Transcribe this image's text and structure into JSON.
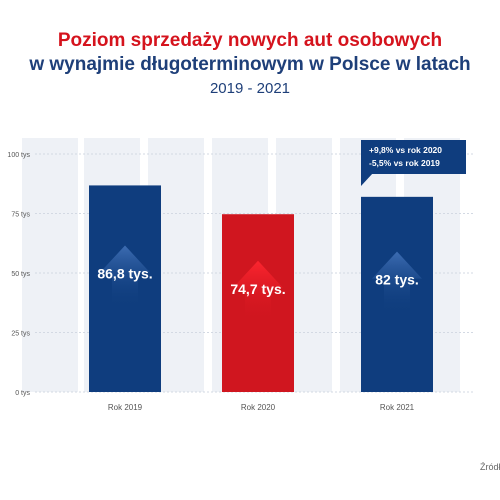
{
  "title": {
    "line1": "Poziom sprzedaży nowych aut osobowych",
    "line2": "w wynajmie długoterminowym w Polsce w latach",
    "line3": "2019 - 2021"
  },
  "source_label": "Źródł",
  "chart_data": {
    "type": "bar",
    "categories": [
      "Rok 2019",
      "Rok 2020",
      "Rok 2021"
    ],
    "values": [
      86.8,
      74.7,
      82
    ],
    "data_labels": [
      "86,8 tys.",
      "74,7 tys.",
      "82 tys."
    ],
    "bar_colors": [
      "#0f3d7e",
      "#d0161f",
      "#0f3d7e"
    ],
    "ylim": [
      0,
      100
    ],
    "yticks": [
      0,
      25,
      50,
      75,
      100
    ],
    "ytick_labels": [
      "0 tys",
      "25 tys",
      "50 tys",
      "75 tys",
      "100 tys"
    ],
    "xlabel": "",
    "ylabel": "",
    "grid": true,
    "callout": {
      "lines": [
        "+9,8% vs rok 2020",
        "-5,5% vs rok 2019"
      ],
      "bar": "Rok 2021"
    },
    "colors": {
      "grid": "#d3d9e3",
      "column_background": "#eef1f6",
      "axis_text": "#555555",
      "callout_bg": "#0f3d7e",
      "bar_text": "#ffffff"
    }
  }
}
